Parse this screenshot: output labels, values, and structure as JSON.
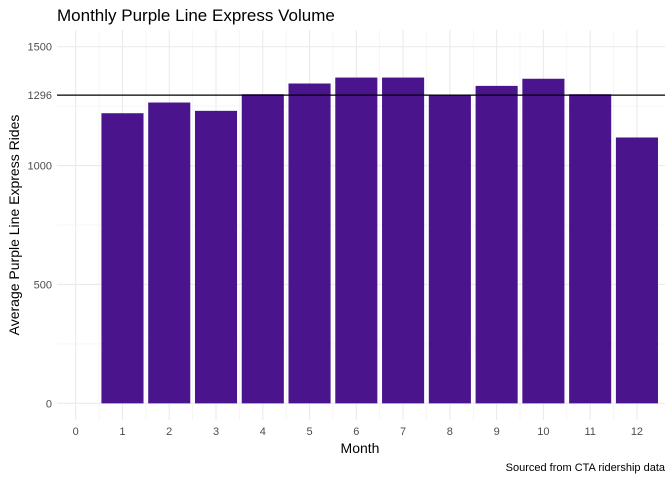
{
  "chart_data": {
    "type": "bar",
    "title": "Monthly Purple Line Express Volume",
    "xlabel": "Month",
    "ylabel": "Average Purple Line Express Rides",
    "caption": "Sourced from CTA ridership data",
    "categories": [
      "1",
      "2",
      "3",
      "4",
      "5",
      "6",
      "7",
      "8",
      "9",
      "10",
      "11",
      "12"
    ],
    "x": [
      1,
      2,
      3,
      4,
      5,
      6,
      7,
      8,
      9,
      10,
      11,
      12
    ],
    "values": [
      1220,
      1265,
      1230,
      1300,
      1345,
      1370,
      1370,
      1295,
      1335,
      1365,
      1300,
      1118
    ],
    "bar_color": "#4A148C",
    "reference_line": {
      "value": 1296,
      "label": "1296",
      "color": "#000000"
    },
    "x_ticks": [
      "0",
      "1",
      "2",
      "3",
      "4",
      "5",
      "6",
      "7",
      "8",
      "9",
      "10",
      "11",
      "12"
    ],
    "y_ticks": [
      "0",
      "500",
      "1000",
      "1296",
      "1500"
    ],
    "xlim": [
      -0.4,
      12.6
    ],
    "ylim": [
      -70,
      1570
    ],
    "grid": true
  }
}
